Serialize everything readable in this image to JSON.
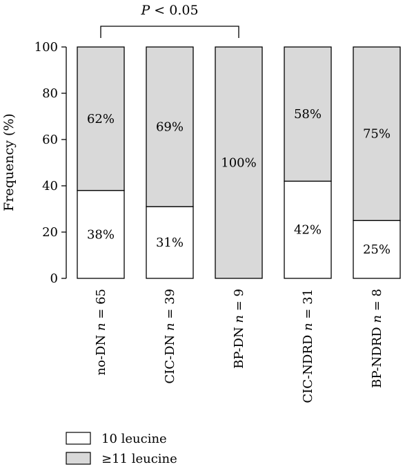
{
  "chart_data": {
    "type": "bar",
    "stacked": true,
    "ylabel": "Frequency (%)",
    "ylim": [
      0,
      100
    ],
    "yticks": [
      0,
      20,
      40,
      60,
      80,
      100
    ],
    "grid": false,
    "legend_position": "bottom-left",
    "categories": [
      {
        "name": "no-DN",
        "n": "65"
      },
      {
        "name": "CIC-DN",
        "n": "39"
      },
      {
        "name": "BP-DN",
        "n": "9"
      },
      {
        "name": "CIC-NDRD",
        "n": "31"
      },
      {
        "name": "BP-NDRD",
        "n": "8"
      }
    ],
    "series": [
      {
        "name": "10 leucine",
        "color": "#ffffff",
        "values": [
          38,
          31,
          0,
          42,
          25
        ],
        "labels": [
          "38%",
          "31%",
          "",
          "42%",
          "25%"
        ]
      },
      {
        "name": "≥11 leucine",
        "color": "#d9d9d9",
        "values": [
          62,
          69,
          100,
          58,
          75
        ],
        "labels": [
          "62%",
          "69%",
          "100%",
          "58%",
          "75%"
        ]
      }
    ],
    "annotation": {
      "text_italic": "P",
      "text_rest": " < 0.05",
      "from_category": 0,
      "to_category": 2
    }
  }
}
